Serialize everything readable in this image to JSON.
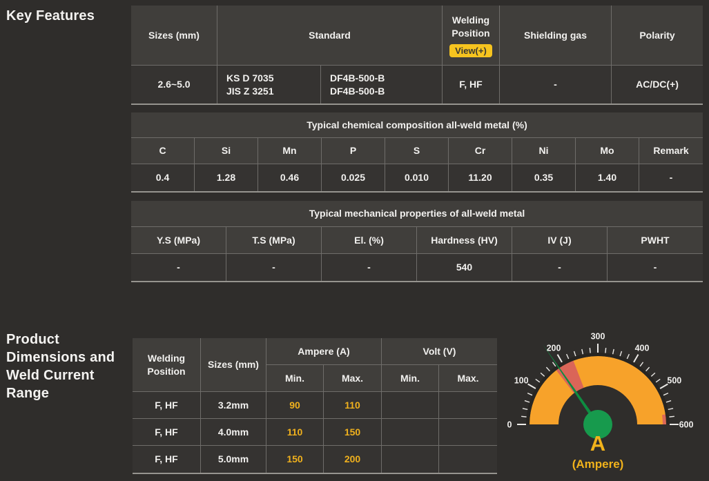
{
  "headings": {
    "key_features": "Key Features",
    "product_dimensions": "Product Dimensions and Weld Current Range"
  },
  "spec_table": {
    "headers": {
      "sizes": "Sizes (mm)",
      "standard": "Standard",
      "welding_position": "Welding Position",
      "view_badge": "View(+)",
      "shielding_gas": "Shielding gas",
      "polarity": "Polarity"
    },
    "row": {
      "sizes": "2.6~5.0",
      "standard_codes": [
        "KS D 7035",
        "JIS Z 3251"
      ],
      "standard_grades": [
        "DF4B-500-B",
        "DF4B-500-B"
      ],
      "welding_position": "F, HF",
      "shielding_gas": "-",
      "polarity": "AC/DC(+)"
    }
  },
  "chemical_table": {
    "title": "Typical chemical composition all-weld metal (%)",
    "headers": [
      "C",
      "Si",
      "Mn",
      "P",
      "S",
      "Cr",
      "Ni",
      "Mo",
      "Remark"
    ],
    "values": [
      "0.4",
      "1.28",
      "0.46",
      "0.025",
      "0.010",
      "11.20",
      "0.35",
      "1.40",
      "-"
    ]
  },
  "mechanical_table": {
    "title": "Typical mechanical properties of all-weld metal",
    "headers": [
      "Y.S (MPa)",
      "T.S (MPa)",
      "El. (%)",
      "Hardness (HV)",
      "IV (J)",
      "PWHT"
    ],
    "values": [
      "-",
      "-",
      "-",
      "540",
      "-",
      "-"
    ]
  },
  "current_table": {
    "headers": {
      "welding_position": "Welding Position",
      "sizes": "Sizes (mm)",
      "ampere": "Ampere (A)",
      "volt": "Volt (V)",
      "min": "Min.",
      "max": "Max."
    },
    "rows": [
      {
        "position": "F, HF",
        "size": "3.2mm",
        "amp_min": "90",
        "amp_max": "110",
        "volt_min": "",
        "volt_max": ""
      },
      {
        "position": "F, HF",
        "size": "4.0mm",
        "amp_min": "110",
        "amp_max": "150",
        "volt_min": "",
        "volt_max": ""
      },
      {
        "position": "F, HF",
        "size": "5.0mm",
        "amp_min": "150",
        "amp_max": "200",
        "volt_min": "",
        "volt_max": ""
      }
    ]
  },
  "chart_data": {
    "type": "gauge",
    "title": "Weld current range gauge",
    "min": 0,
    "max": 600,
    "major_tick_step": 100,
    "minor_tick_step": 20,
    "tick_labels": [
      "0",
      "100",
      "200",
      "300",
      "400",
      "500",
      "600"
    ],
    "needle_value": 185,
    "highlight_range": [
      175,
      230
    ],
    "end_highlight_range": [
      572,
      600
    ],
    "unit_label": "A",
    "unit_sublabel": "(Ampere)",
    "colors": {
      "band": "#F7A22A",
      "highlight": "#D8625B",
      "needle": "#0E8C41",
      "hub": "#179A4D",
      "ticks": "#ECEAE7",
      "tick_text": "#F0EFED",
      "ring": "#272522",
      "unit_text": "#F1B21B"
    }
  },
  "colors": {
    "background": "#2F2D2B",
    "header_cell": "#403E3B",
    "body_cell": "#353331",
    "border": "#6F6D6A",
    "accent_yellow": "#F0B11D",
    "badge_yellow": "#F6C41F"
  }
}
